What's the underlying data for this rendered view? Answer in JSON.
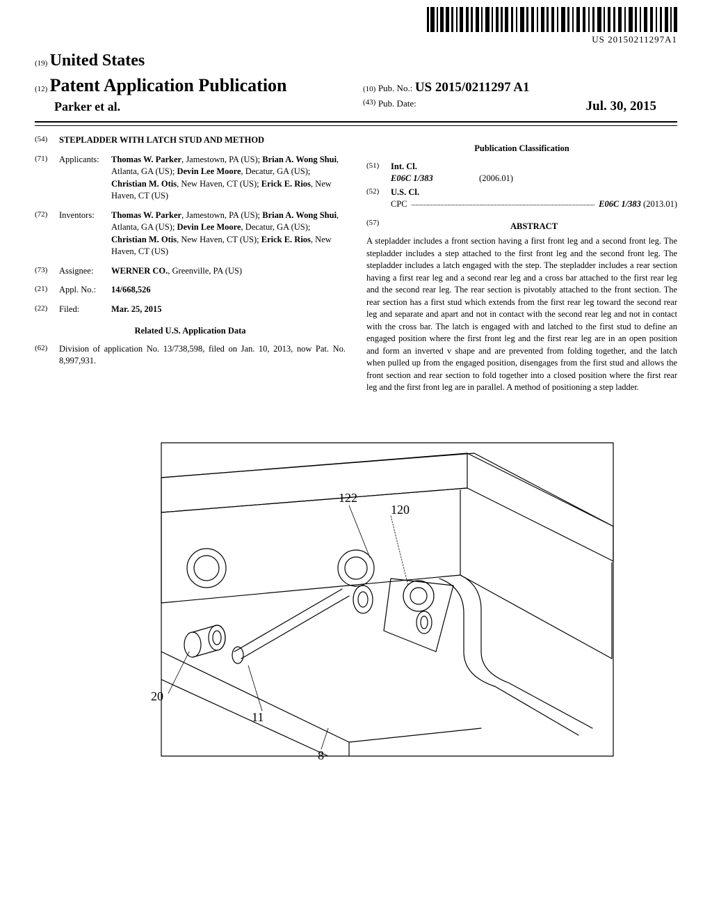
{
  "barcode": {
    "text": "US 20150211297A1"
  },
  "header": {
    "country_num": "(19)",
    "country": "United States",
    "pub_type_num": "(12)",
    "pub_type": "Patent Application Publication",
    "authors": "Parker et al.",
    "pub_no_num": "(10)",
    "pub_no_label": "Pub. No.:",
    "pub_no_value": "US 2015/0211297 A1",
    "pub_date_num": "(43)",
    "pub_date_label": "Pub. Date:",
    "pub_date_value": "Jul. 30, 2015"
  },
  "left_col": {
    "title": {
      "num": "(54)",
      "value": "STEPLADDER WITH LATCH STUD AND METHOD"
    },
    "applicants": {
      "num": "(71)",
      "label": "Applicants:",
      "value_html": "<b>Thomas W. Parker</b>, Jamestown, PA (US); <b>Brian A. Wong Shui</b>, Atlanta, GA (US); <b>Devin Lee Moore</b>, Decatur, GA (US); <b>Christian M. Otis</b>, New Haven, CT (US); <b>Erick E. Rios</b>, New Haven, CT (US)"
    },
    "inventors": {
      "num": "(72)",
      "label": "Inventors:",
      "value_html": "<b>Thomas W. Parker</b>, Jamestown, PA (US); <b>Brian A. Wong Shui</b>, Atlanta, GA (US); <b>Devin Lee Moore</b>, Decatur, GA (US); <b>Christian M. Otis</b>, New Haven, CT (US); <b>Erick E. Rios</b>, New Haven, CT (US)"
    },
    "assignee": {
      "num": "(73)",
      "label": "Assignee:",
      "value_html": "<b>WERNER CO.</b>, Greenville, PA (US)"
    },
    "appl_no": {
      "num": "(21)",
      "label": "Appl. No.:",
      "value_html": "<b>14/668,526</b>"
    },
    "filed": {
      "num": "(22)",
      "label": "Filed:",
      "value_html": "<b>Mar. 25, 2015</b>"
    },
    "related_heading": "Related U.S. Application Data",
    "related": {
      "num": "(62)",
      "value": "Division of application No. 13/738,598, filed on Jan. 10, 2013, now Pat. No. 8,997,931."
    }
  },
  "right_col": {
    "class_heading": "Publication Classification",
    "int_cl": {
      "num": "(51)",
      "label": "Int. Cl.",
      "code": "E06C 1/383",
      "date": "(2006.01)"
    },
    "us_cl": {
      "num": "(52)",
      "label": "U.S. Cl.",
      "cpc_label": "CPC",
      "cpc_value": "E06C 1/383",
      "cpc_date": "(2013.01)"
    },
    "abstract": {
      "num": "(57)",
      "heading": "ABSTRACT",
      "text": "A stepladder includes a front section having a first front leg and a second front leg. The stepladder includes a step attached to the first front leg and the second front leg. The stepladder includes a latch engaged with the step. The stepladder includes a rear section having a first rear leg and a second rear leg and a cross bar attached to the first rear leg and the second rear leg. The rear section is pivotably attached to the front section. The rear section has a first stud which extends from the first rear leg toward the second rear leg and separate and apart and not in contact with the second rear leg and not in contact with the cross bar. The latch is engaged with and latched to the first stud to define an engaged position where the first front leg and the first rear leg are in an open position and form an inverted v shape and are prevented from folding together, and the latch when pulled up from the engaged position, disengages from the first stud and allows the front section and rear section to fold together into a closed position where the first rear leg and the first front leg are in parallel. A method of positioning a step ladder."
    }
  },
  "figure": {
    "labels": {
      "l122": "122",
      "l120": "120",
      "l20": "20",
      "l11": "11",
      "l8": "8"
    },
    "stroke": "#000000",
    "stroke_width": 1.2,
    "fill": "none"
  }
}
